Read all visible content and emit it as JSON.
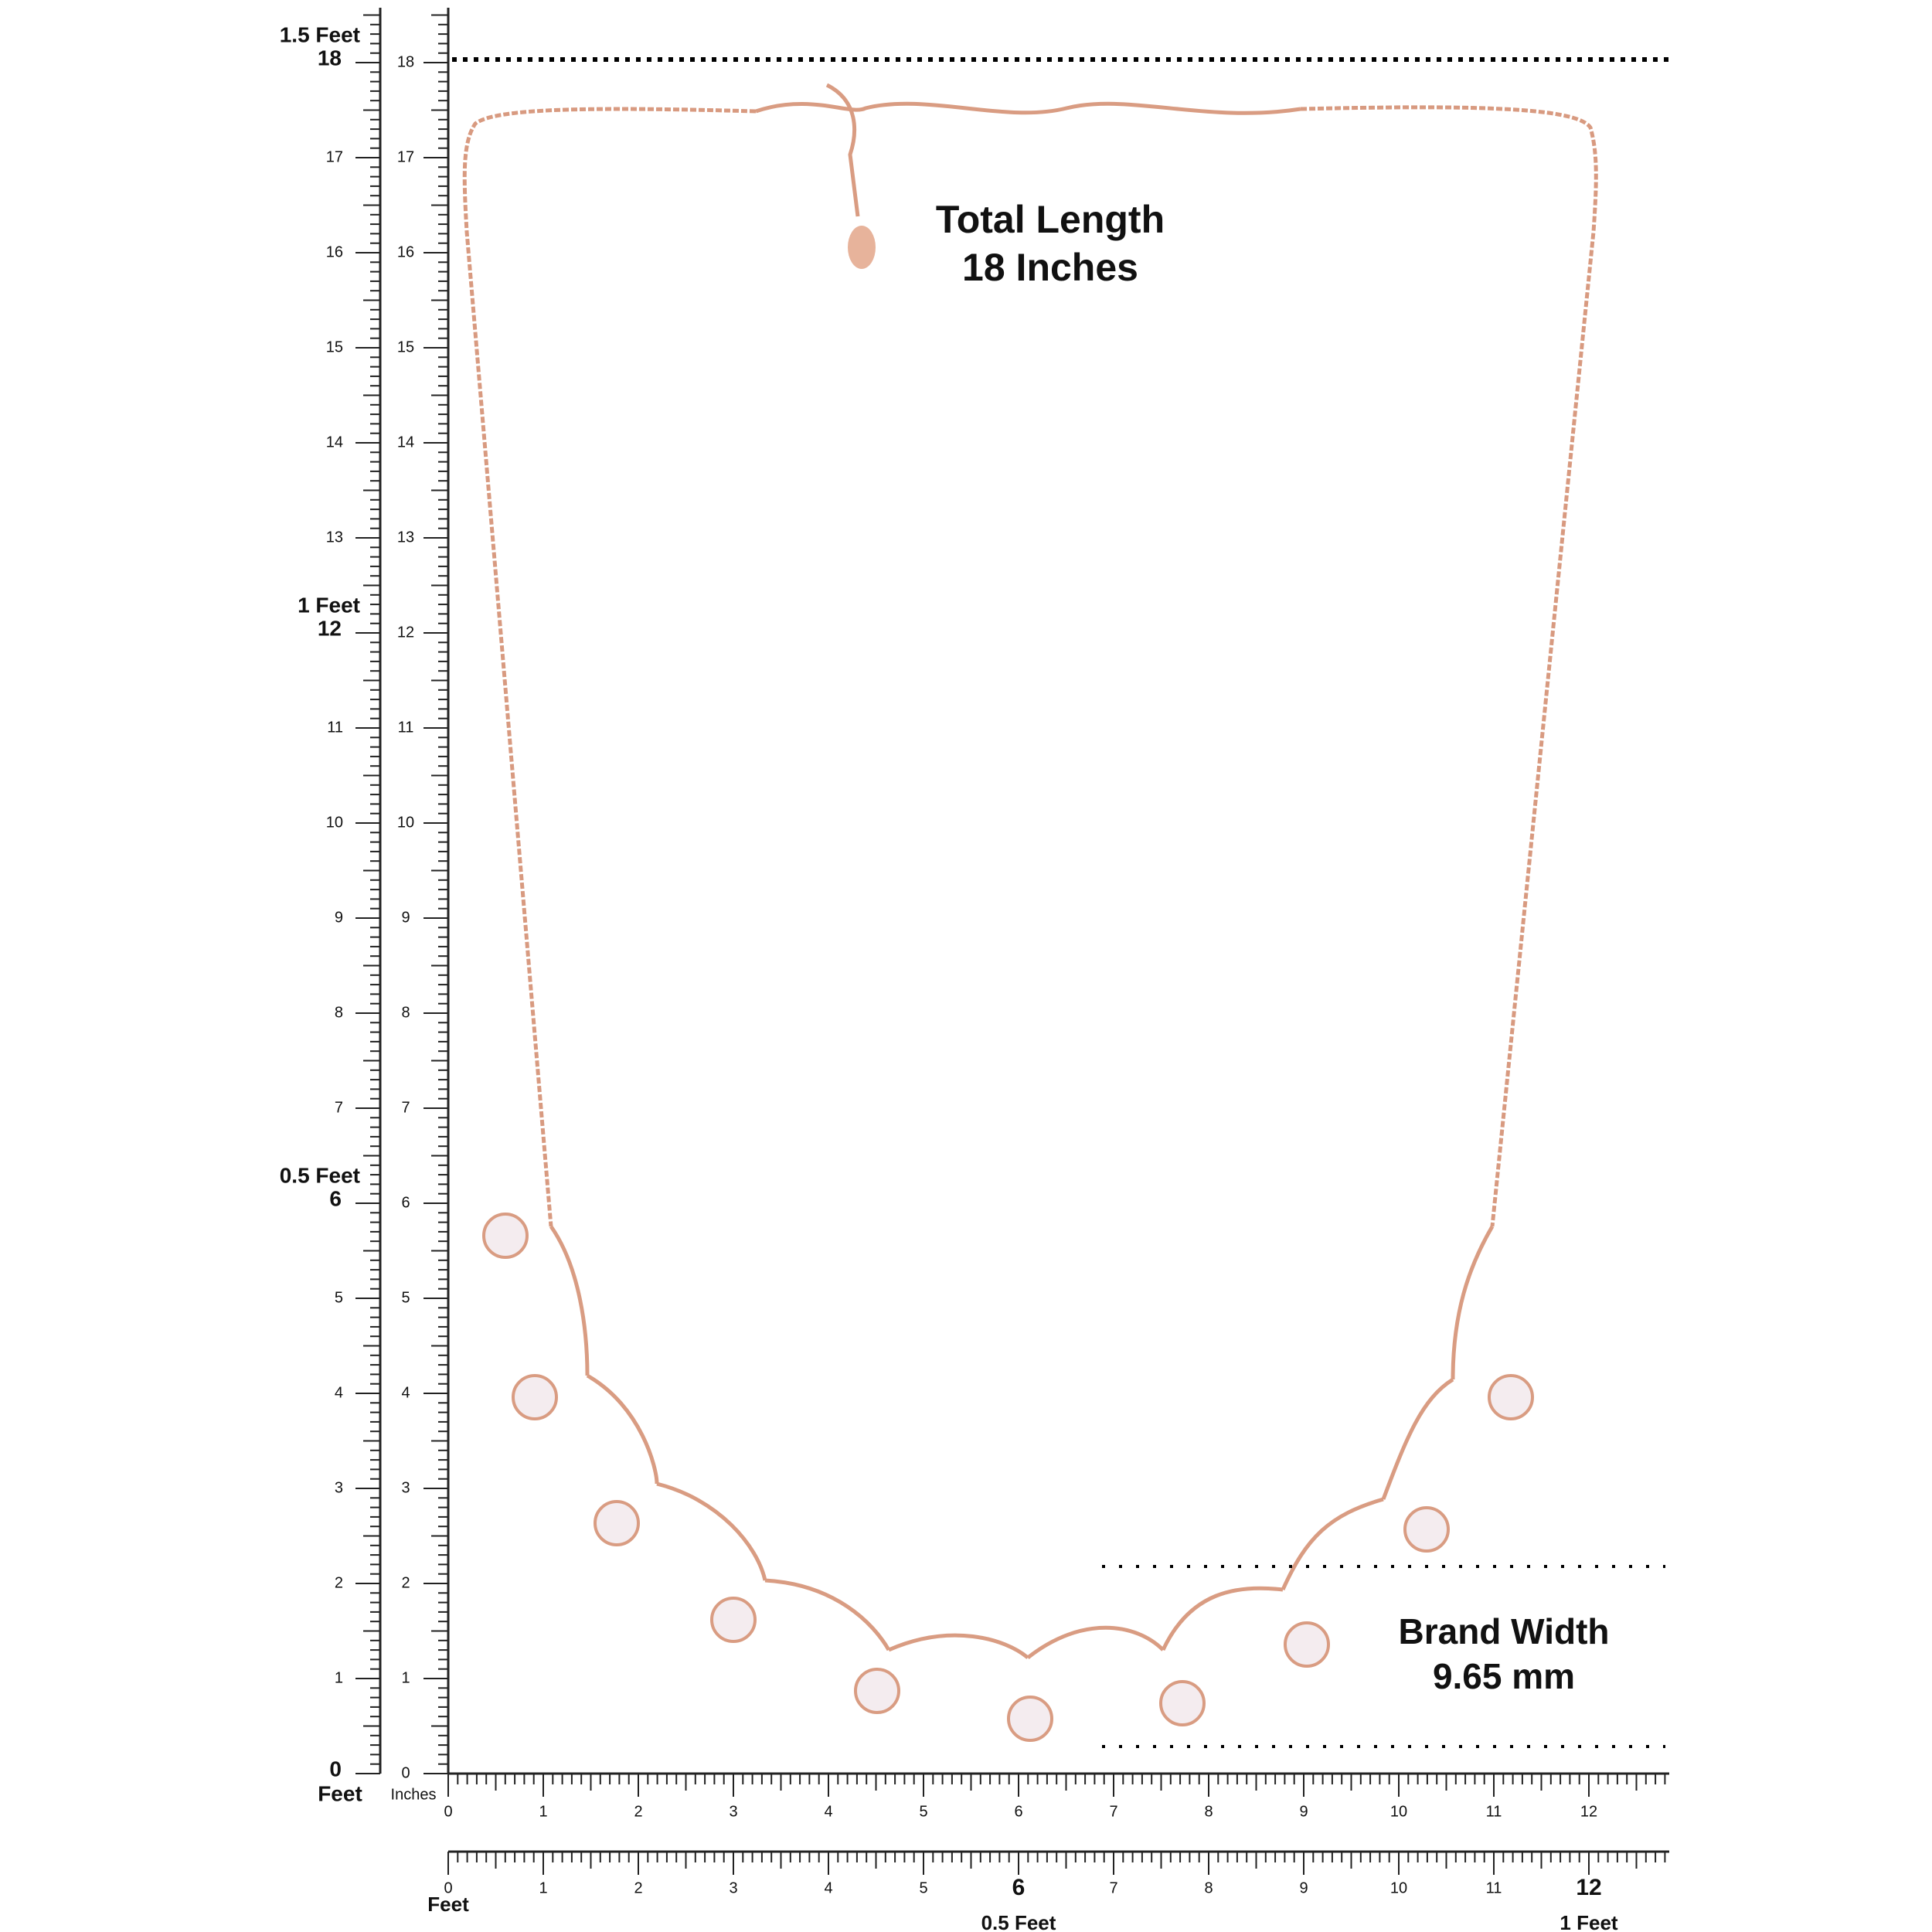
{
  "left_ruler": {
    "ticks": [
      0,
      1,
      2,
      3,
      4,
      5,
      6,
      7,
      8,
      9,
      10,
      11,
      12,
      13,
      14,
      15,
      16,
      17,
      18
    ],
    "feet_labels": [
      {
        "feet": "1.5 Feet",
        "inch": 18
      },
      {
        "feet": "1 Feet",
        "inch": 12
      },
      {
        "feet": "0.5 Feet",
        "inch": 6
      }
    ],
    "unit": "Feet"
  },
  "inch_ruler": {
    "ticks": [
      0,
      1,
      2,
      3,
      4,
      5,
      6,
      7,
      8,
      9,
      10,
      11,
      12,
      13,
      14,
      15,
      16,
      17,
      18
    ],
    "unit": "Inches"
  },
  "bottom_ruler": {
    "ticks": [
      0,
      1,
      2,
      3,
      4,
      5,
      6,
      7,
      8,
      9,
      10,
      11,
      12
    ]
  },
  "feet_ruler": {
    "ticks": [
      0,
      1,
      2,
      3,
      4,
      5,
      6,
      7,
      8,
      9,
      10,
      11,
      12
    ],
    "unit": "Feet",
    "feet_labels": [
      {
        "feet": "0.5 Feet",
        "inch": 6
      },
      {
        "feet": "1 Feet",
        "inch": 12
      }
    ]
  },
  "annotations": {
    "total_length": {
      "title": "Total Length",
      "value": "18 Inches"
    },
    "band_width": {
      "title": "Brand Width",
      "value": "9.65 mm"
    }
  }
}
